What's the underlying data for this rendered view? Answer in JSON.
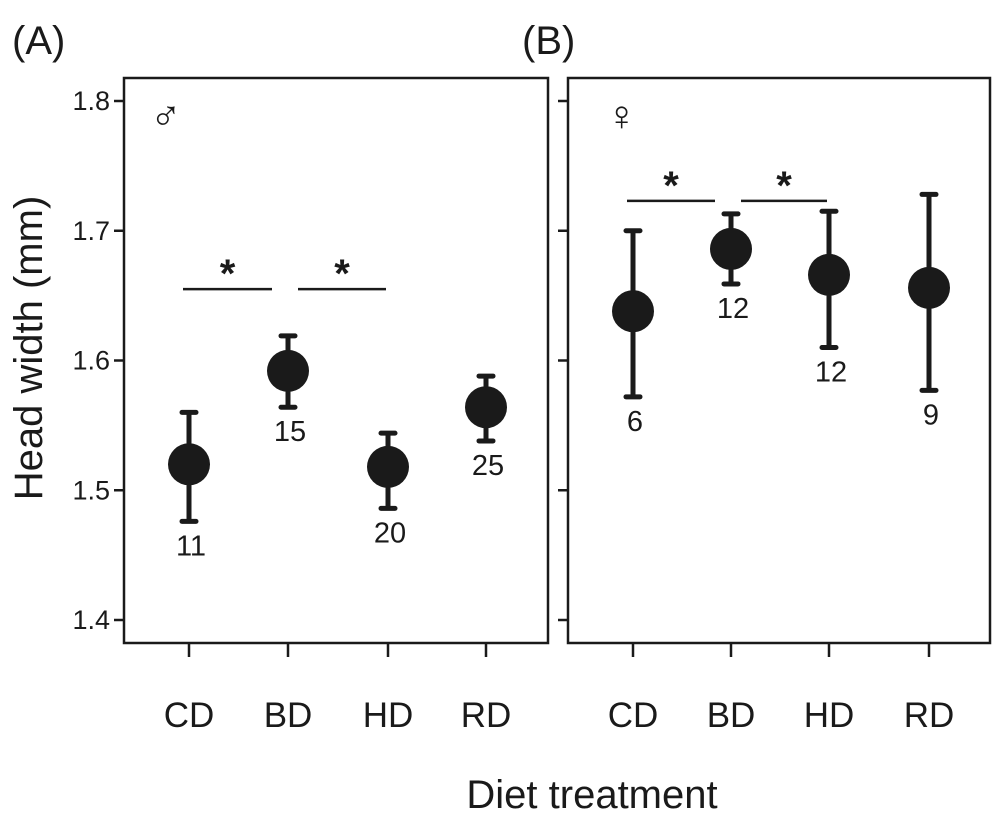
{
  "figure": {
    "xlabel": "Diet treatment",
    "ylabel": "Head width (mm)"
  },
  "chart_data": [
    {
      "type": "scatter",
      "panel_label": "(A)",
      "sex_symbol": "♂",
      "categories": [
        "CD",
        "BD",
        "HD",
        "RD"
      ],
      "ylim": [
        1.4,
        1.8
      ],
      "yticks": [
        1.4,
        1.5,
        1.6,
        1.7,
        1.8
      ],
      "ytick_labels": [
        "1.4",
        "1.5",
        "1.6",
        "1.7",
        "1.8"
      ],
      "mean": [
        1.52,
        1.592,
        1.518,
        1.564
      ],
      "upper": [
        1.56,
        1.619,
        1.544,
        1.588
      ],
      "lower": [
        1.476,
        1.564,
        1.486,
        1.538
      ],
      "n": [
        "11",
        "15",
        "20",
        "25"
      ],
      "n_position": [
        "below",
        "below",
        "below",
        "below"
      ],
      "significance": [
        {
          "from": 0,
          "to": 1,
          "label": "*",
          "y": 1.655
        },
        {
          "from": 1,
          "to": 2,
          "label": "*",
          "y": 1.655
        }
      ]
    },
    {
      "type": "scatter",
      "panel_label": "(B)",
      "sex_symbol": "♀",
      "categories": [
        "CD",
        "BD",
        "HD",
        "RD"
      ],
      "ylim": [
        1.4,
        1.8
      ],
      "yticks": [
        1.4,
        1.5,
        1.6,
        1.7,
        1.8
      ],
      "ytick_labels": [],
      "mean": [
        1.638,
        1.686,
        1.666,
        1.656
      ],
      "upper": [
        1.7,
        1.713,
        1.715,
        1.728
      ],
      "lower": [
        1.572,
        1.659,
        1.61,
        1.577
      ],
      "n": [
        "6",
        "12",
        "12",
        "9"
      ],
      "n_position": [
        "below",
        "below",
        "below",
        "below"
      ],
      "significance": [
        {
          "from": 0,
          "to": 1,
          "label": "*",
          "y": 1.723
        },
        {
          "from": 1,
          "to": 2,
          "label": "*",
          "y": 1.723
        }
      ]
    }
  ]
}
